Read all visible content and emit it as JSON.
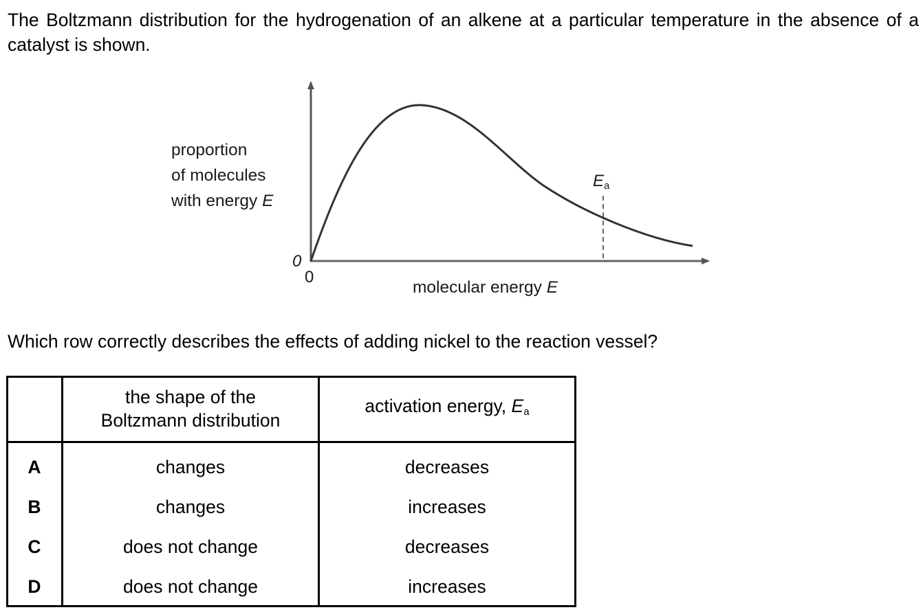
{
  "intro_text": "The Boltzmann distribution for the hydrogenation of an alkene at a particular temperature in the absence of a catalyst is shown.",
  "graph": {
    "y_axis_label_lines": [
      "proportion",
      "of molecules",
      "with energy "
    ],
    "y_axis_label_var": "E",
    "x_axis_label": "molecular energy ",
    "x_axis_label_var": "E",
    "origin_y_label": "0",
    "origin_x_label": "0",
    "ea_label_main": "E",
    "ea_label_sub": "a"
  },
  "question": "Which row correctly describes the effects of adding nickel to the reaction vessel?",
  "table": {
    "headers": {
      "letter": "",
      "shape_line1": "the shape of the",
      "shape_line2": "Boltzmann distribution",
      "ea_text": "activation energy, ",
      "ea_var": "E",
      "ea_sub": "a"
    },
    "rows": [
      {
        "letter": "A",
        "shape": "changes",
        "ea": "decreases"
      },
      {
        "letter": "B",
        "shape": "changes",
        "ea": "increases"
      },
      {
        "letter": "C",
        "shape": "does not change",
        "ea": "decreases"
      },
      {
        "letter": "D",
        "shape": "does not change",
        "ea": "increases"
      }
    ]
  },
  "colors": {
    "text": "#000000",
    "graph_line": "#333333"
  }
}
